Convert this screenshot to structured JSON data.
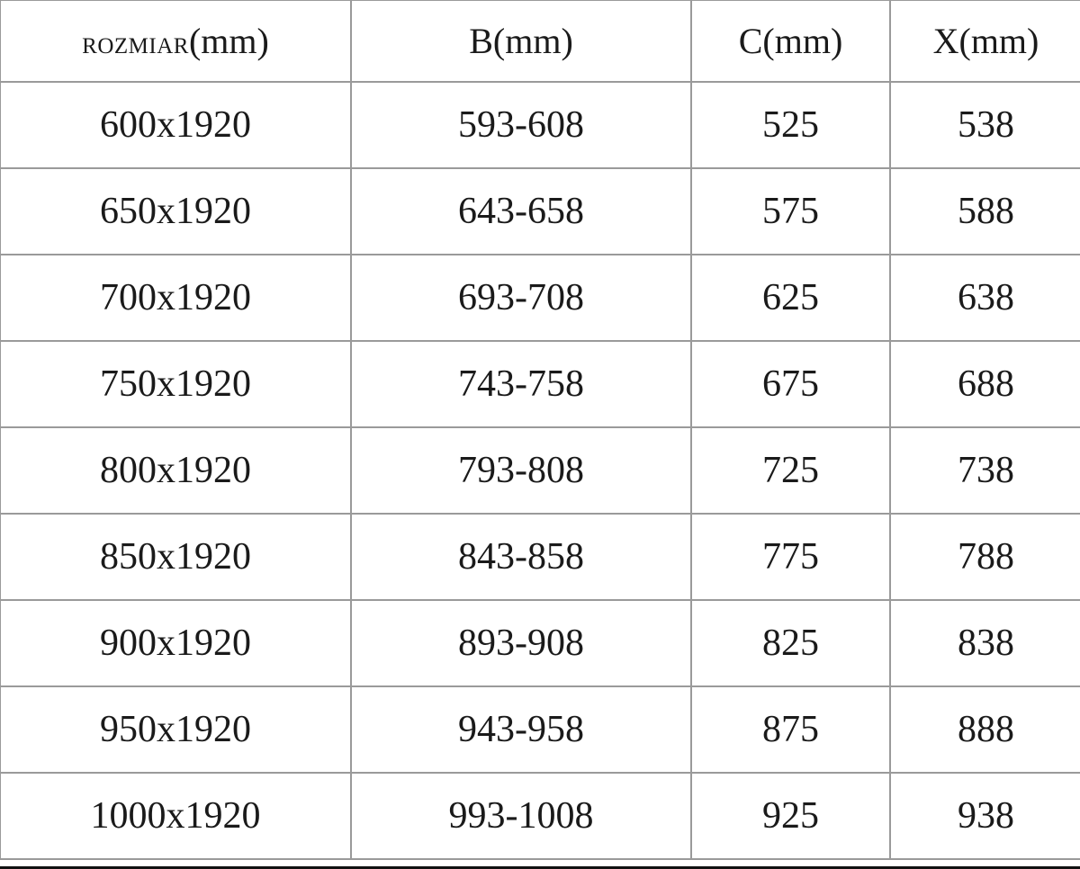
{
  "headers": [
    {
      "prefix": "ROZMIAR",
      "unit": "(mm)"
    },
    {
      "prefix": "B",
      "unit": "(mm)"
    },
    {
      "prefix": "C",
      "unit": "(mm)"
    },
    {
      "prefix": "X",
      "unit": "(mm)"
    }
  ],
  "rows": [
    [
      "600x1920",
      "593-608",
      "525",
      "538"
    ],
    [
      "650x1920",
      "643-658",
      "575",
      "588"
    ],
    [
      "700x1920",
      "693-708",
      "625",
      "638"
    ],
    [
      "750x1920",
      "743-758",
      "675",
      "688"
    ],
    [
      "800x1920",
      "793-808",
      "725",
      "738"
    ],
    [
      "850x1920",
      "843-858",
      "775",
      "788"
    ],
    [
      "900x1920",
      "893-908",
      "825",
      "838"
    ],
    [
      "950x1920",
      "943-958",
      "875",
      "888"
    ],
    [
      "1000x1920",
      "993-1008",
      "925",
      "938"
    ]
  ]
}
